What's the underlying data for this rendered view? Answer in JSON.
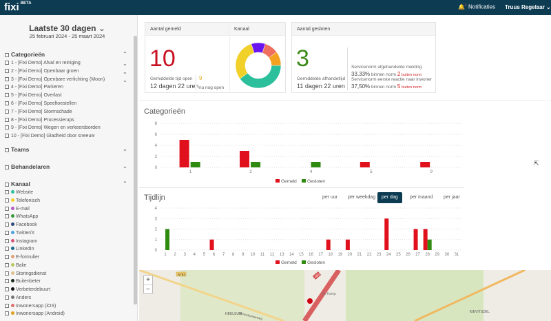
{
  "header": {
    "logo": "fixi",
    "logo_badge": "BETA",
    "notifications": "Notificaties",
    "notification_count": "1",
    "user": "Truus Regelaar"
  },
  "sidebar": {
    "range": "Laatste 30 dagen",
    "dates": "25 februari 2024 - 25 maart 2024",
    "categories_title": "Categorieën",
    "categories": [
      "1 - [Fixi Demo] Afval en reiniging",
      "2 - [Fixi Demo] Openbaar groen",
      "3 - [Fixi Demo] Openbare verlichting (Moon)",
      "4 - [Fixi Demo] Parkeren",
      "5 - [Fixi Demo] Overlast",
      "6 - [Fixi Demo] Speeltoestellen",
      "7 - [Fixi Demo] Stormschade",
      "8 - [Fixi Demo] Processierups",
      "9 - [Fixi Demo] Wegen en verkeersborden",
      "10 - [Fixi Demo] Gladheid door sneeuw"
    ],
    "teams": "Teams",
    "handlers": "Behandelaren",
    "channel_title": "Kanaal",
    "channels": [
      {
        "label": "Website",
        "color": "#2bbf9b"
      },
      {
        "label": "Telefonisch",
        "color": "#f2d02a"
      },
      {
        "label": "E-mail",
        "color": "#b45cc8"
      },
      {
        "label": "WhatsApp",
        "color": "#3a9a3a"
      },
      {
        "label": "Facebook",
        "color": "#2f4a7a"
      },
      {
        "label": "Twitter/X",
        "color": "#4aa3e0"
      },
      {
        "label": "Instagram",
        "color": "#d9577a"
      },
      {
        "label": "LinkedIn",
        "color": "#1f6a8a"
      },
      {
        "label": "E-formulier",
        "color": "#e0a078"
      },
      {
        "label": "Balie",
        "color": "#b8c860"
      },
      {
        "label": "Storingsdienst",
        "color": "#e0c090"
      },
      {
        "label": "Buitenbeter",
        "color": "#1a2a1a"
      },
      {
        "label": "Verbeterdebuurt",
        "color": "#111111"
      },
      {
        "label": "Anders",
        "color": "#777777"
      },
      {
        "label": "Inwonersapp (iOS)",
        "color": "#e07070"
      },
      {
        "label": "Inwonersapp (Android)",
        "color": "#e0a020"
      }
    ]
  },
  "cards": {
    "reported": {
      "title": "Aantal gemeld",
      "value": "10",
      "avg_label": "Gemiddelde tijd open",
      "avg_value": "12 dagen 22 uren",
      "open_value": "9",
      "open_label": "nu nog open"
    },
    "channel": {
      "title": "Kanaal",
      "slices": [
        {
          "color": "#2bbf9b",
          "value": 4
        },
        {
          "color": "#f2d02a",
          "value": 3
        },
        {
          "color": "#6a14f0",
          "value": 1
        },
        {
          "color": "#f07060",
          "value": 1
        },
        {
          "color": "#f4a020",
          "value": 1
        }
      ]
    },
    "closed": {
      "title": "Aantal gesloten",
      "value": "3",
      "avg_label": "Gemiddelde afhandeltijd",
      "avg_value": "11 dagen 22 uren",
      "norm1_label": "Servicenorm afgehandelde melding",
      "norm1_pct": "33,33%",
      "norm1_within": "binnen norm",
      "norm1_out": "2",
      "norm1_out_label": "buiten norm",
      "norm2_label": "Servicenorm eerste reactie naar inwoner",
      "norm2_pct": "37,50%",
      "norm2_within": "binnen norm",
      "norm2_out": "5",
      "norm2_out_label": "buiten norm"
    }
  },
  "categories_section": {
    "title": "Categorieën"
  },
  "timeline_section": {
    "title": "Tijdlijn",
    "buttons": [
      "per uur",
      "per weekdag",
      "per dag",
      "per maand",
      "per jaar"
    ],
    "active": "per dag"
  },
  "chart_data": [
    {
      "type": "bar",
      "categories": [
        "1",
        "2",
        "4",
        "5",
        "9"
      ],
      "ylim": [
        0,
        8
      ],
      "yticks": [
        0,
        2,
        4,
        6,
        8
      ],
      "grid": true,
      "legend": "bottom",
      "series": [
        {
          "name": "Gemeld",
          "color": "#e0101c",
          "values": [
            5,
            3,
            0,
            1,
            1
          ]
        },
        {
          "name": "Gesloten",
          "color": "#2f8a10",
          "values": [
            1,
            1,
            1,
            0,
            0
          ]
        }
      ]
    },
    {
      "type": "bar",
      "categories": [
        "1",
        "2",
        "3",
        "4",
        "5",
        "6",
        "7",
        "8",
        "9",
        "10",
        "11",
        "12",
        "13",
        "14",
        "15",
        "16",
        "17",
        "18",
        "19",
        "20",
        "21",
        "22",
        "23",
        "24",
        "25",
        "26",
        "27",
        "28",
        "29",
        "30",
        "31"
      ],
      "ylim": [
        0,
        4
      ],
      "yticks": [
        0,
        1,
        2,
        3,
        4
      ],
      "grid": true,
      "legend": "bottom",
      "series": [
        {
          "name": "Gemeld",
          "color": "#e0101c",
          "values": [
            0,
            0,
            0,
            0,
            0,
            1,
            0,
            0,
            0,
            0,
            0,
            0,
            0,
            0,
            0,
            0,
            0,
            1,
            0,
            1,
            0,
            0,
            0,
            3,
            0,
            0,
            2,
            2,
            0,
            0,
            0
          ]
        },
        {
          "name": "Gesloten",
          "color": "#2f8a10",
          "values": [
            2,
            0,
            0,
            0,
            0,
            0,
            0,
            0,
            0,
            0,
            0,
            0,
            0,
            0,
            0,
            0,
            0,
            0,
            0,
            0,
            0,
            0,
            0,
            0,
            0,
            0,
            0,
            1,
            0,
            0,
            0
          ]
        }
      ]
    }
  ],
  "map": {
    "labels": [
      "HEELSUM",
      "KIEVITSDEL",
      "De Kamp",
      "N783",
      "A50",
      "Bennekomseweg"
    ],
    "zoom_in": "+",
    "zoom_out": "−"
  }
}
